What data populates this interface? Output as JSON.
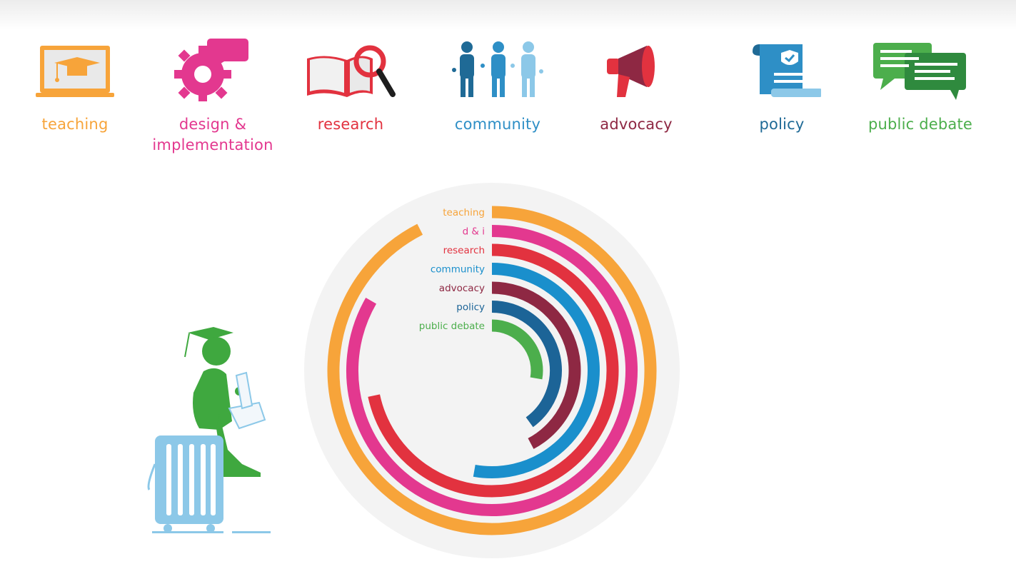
{
  "categories_bar": [
    {
      "id": "teaching",
      "label": "teaching",
      "icon": "graduation-laptop-icon",
      "color": "#f7a43a"
    },
    {
      "id": "design",
      "label": "design & implementation",
      "icon": "gear-chat-icon",
      "color": "#e3388f"
    },
    {
      "id": "research",
      "label": "research",
      "icon": "book-magnifier-icon",
      "color": "#e2323f"
    },
    {
      "id": "community",
      "label": "community",
      "icon": "people-group-icon",
      "color": "#2e8fc6"
    },
    {
      "id": "advocacy",
      "label": "advocacy",
      "icon": "megaphone-icon",
      "color": "#8e2843"
    },
    {
      "id": "policy",
      "label": "policy",
      "icon": "policy-scroll-icon",
      "color": "#1f6a96"
    },
    {
      "id": "public_debate",
      "label": "public debate",
      "icon": "speech-bubbles-icon",
      "color": "#4cae4c"
    }
  ],
  "chart_data": {
    "type": "radial-bar",
    "series": [
      {
        "name": "teaching",
        "value": 333,
        "color": "#f7a43a"
      },
      {
        "name": "d & i",
        "value": 300,
        "color": "#e3388f"
      },
      {
        "name": "research",
        "value": 258,
        "color": "#e2323f"
      },
      {
        "name": "community",
        "value": 190,
        "color": "#1a8fcc"
      },
      {
        "name": "advocacy",
        "value": 152,
        "color": "#8e2843"
      },
      {
        "name": "policy",
        "value": 144,
        "color": "#1c6497"
      },
      {
        "name": "public debate",
        "value": 100,
        "color": "#4cae4c"
      }
    ],
    "unit": "degrees of arc",
    "max": 360,
    "background_color": "#f3f3f3"
  },
  "illustration": {
    "icon": "graduate-with-suitcase-icon",
    "figure_color": "#3fa83f",
    "suitcase_color": "#8cc8e8"
  }
}
